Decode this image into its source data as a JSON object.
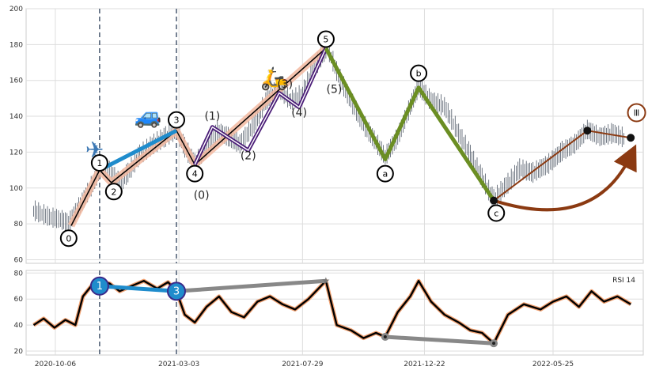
{
  "chart_data": [
    {
      "type": "line",
      "panel": "price",
      "title": "",
      "xlabel": "",
      "ylabel": "",
      "x_ticks": [
        "2020-10-06",
        "2021-03-03",
        "2021-07-29",
        "2021-12-22",
        "2022-05-25"
      ],
      "x_range": [
        "2020-09-01",
        "2022-09-10"
      ],
      "y_ticks": [
        60,
        80,
        100,
        120,
        140,
        160,
        180,
        200
      ],
      "ylim": [
        58,
        200
      ],
      "grid": true,
      "series": [
        {
          "style": "ohlc-bars",
          "color": "#2e3a4a",
          "points": [
            [
              "2020-09-10",
              87
            ],
            [
              "2020-09-20",
              85
            ],
            [
              "2020-10-01",
              83
            ],
            [
              "2020-10-12",
              82
            ],
            [
              "2020-10-22",
              80
            ],
            [
              "2020-11-05",
              90
            ],
            [
              "2020-11-20",
              102
            ],
            [
              "2020-12-01",
              112
            ],
            [
              "2020-12-12",
              108
            ],
            [
              "2020-12-22",
              102
            ],
            [
              "2021-01-01",
              108
            ],
            [
              "2021-01-15",
              118
            ],
            [
              "2021-02-01",
              124
            ],
            [
              "2021-02-15",
              128
            ],
            [
              "2021-02-28",
              132
            ],
            [
              "2021-03-10",
              122
            ],
            [
              "2021-03-22",
              113
            ],
            [
              "2021-04-05",
              122
            ],
            [
              "2021-04-18",
              131
            ],
            [
              "2021-05-01",
              128
            ],
            [
              "2021-05-15",
              124
            ],
            [
              "2021-06-01",
              135
            ],
            [
              "2021-06-15",
              148
            ],
            [
              "2021-07-01",
              155
            ],
            [
              "2021-07-15",
              148
            ],
            [
              "2021-07-29",
              152
            ],
            [
              "2021-08-10",
              165
            ],
            [
              "2021-08-28",
              178
            ],
            [
              "2021-09-10",
              162
            ],
            [
              "2021-09-25",
              148
            ],
            [
              "2021-10-10",
              135
            ],
            [
              "2021-10-25",
              125
            ],
            [
              "2021-11-05",
              117
            ],
            [
              "2021-11-20",
              128
            ],
            [
              "2021-12-05",
              145
            ],
            [
              "2021-12-15",
              156
            ],
            [
              "2021-12-30",
              148
            ],
            [
              "2022-01-15",
              145
            ],
            [
              "2022-02-01",
              130
            ],
            [
              "2022-02-15",
              118
            ],
            [
              "2022-03-01",
              105
            ],
            [
              "2022-03-15",
              93
            ],
            [
              "2022-04-01",
              102
            ],
            [
              "2022-04-15",
              110
            ],
            [
              "2022-05-01",
              108
            ],
            [
              "2022-05-20",
              113
            ],
            [
              "2022-06-05",
              120
            ],
            [
              "2022-06-20",
              124
            ],
            [
              "2022-07-05",
              132
            ],
            [
              "2022-07-20",
              128
            ],
            [
              "2022-08-05",
              130
            ],
            [
              "2022-08-20",
              127
            ]
          ]
        },
        {
          "name": "impulse",
          "style": "wave",
          "color": "#000000",
          "highlight": "#f2b8a0",
          "points": [
            [
              "2020-10-25",
              79
            ],
            [
              "2020-11-28",
              110
            ],
            [
              "2020-12-12",
              103
            ],
            [
              "2021-02-28",
              132
            ],
            [
              "2021-03-22",
              113
            ],
            [
              "2021-08-26",
              178
            ]
          ]
        },
        {
          "name": "sub-wave",
          "style": "wave",
          "color": "#4b1e78",
          "points": [
            [
              "2021-03-22",
              113
            ],
            [
              "2021-04-12",
              134
            ],
            [
              "2021-05-25",
              121
            ],
            [
              "2021-07-01",
              153
            ],
            [
              "2021-07-25",
              145
            ],
            [
              "2021-08-26",
              178
            ]
          ]
        },
        {
          "name": "blue-link",
          "style": "thick-line",
          "color": "#1f8ccc",
          "points": [
            [
              "2020-11-28",
              110
            ],
            [
              "2021-02-28",
              132
            ]
          ]
        },
        {
          "name": "correction",
          "style": "thick-line",
          "color": "#6b8e23",
          "points": [
            [
              "2021-08-26",
              178
            ],
            [
              "2021-11-05",
              116
            ],
            [
              "2021-12-15",
              156
            ],
            [
              "2022-03-15",
              93
            ]
          ]
        },
        {
          "name": "brown-line",
          "style": "line",
          "color": "#8b3a12",
          "points": [
            [
              "2022-03-15",
              93
            ],
            [
              "2022-07-05",
              132
            ],
            [
              "2022-08-26",
              128
            ]
          ]
        }
      ],
      "annotations": [
        {
          "text": "0",
          "x": "2020-10-22",
          "y": 72,
          "style": "circle"
        },
        {
          "text": "1",
          "x": "2020-11-28",
          "y": 114,
          "style": "circle"
        },
        {
          "text": "2",
          "x": "2020-12-15",
          "y": 98,
          "style": "circle"
        },
        {
          "text": "3",
          "x": "2021-02-28",
          "y": 138,
          "style": "circle"
        },
        {
          "text": "4",
          "x": "2021-03-22",
          "y": 108,
          "style": "circle"
        },
        {
          "text": "5",
          "x": "2021-08-26",
          "y": 183,
          "style": "circle"
        },
        {
          "text": "a",
          "x": "2021-11-05",
          "y": 108,
          "style": "circle"
        },
        {
          "text": "b",
          "x": "2021-12-15",
          "y": 164,
          "style": "circle"
        },
        {
          "text": "c",
          "x": "2022-03-18",
          "y": 86,
          "style": "circle"
        },
        {
          "text": "(1)",
          "x": "2021-04-12",
          "y": 138,
          "style": "text"
        },
        {
          "text": "(2)",
          "x": "2021-05-25",
          "y": 116,
          "style": "text"
        },
        {
          "text": "(3)",
          "x": "2021-07-08",
          "y": 156,
          "style": "text"
        },
        {
          "text": "(4)",
          "x": "2021-07-25",
          "y": 140,
          "style": "text"
        },
        {
          "text": "(5)",
          "x": "2021-09-05",
          "y": 153,
          "style": "text"
        },
        {
          "text": "(0)",
          "x": "2021-03-30",
          "y": 94,
          "style": "text"
        },
        {
          "text": "Ⅲ",
          "x": "2022-09-02",
          "y": 142,
          "style": "circle-brown"
        }
      ],
      "vlines": [
        "2020-11-28",
        "2021-02-28"
      ],
      "icons": [
        {
          "name": "airplane-icon",
          "glyph": "✈",
          "color": "#3c78b4",
          "x": "2020-11-22",
          "y": 117
        },
        {
          "name": "car-icon",
          "glyph": "🚙",
          "color": "#2a7fd4",
          "x": "2021-01-25",
          "y": 136
        },
        {
          "name": "scooter-icon",
          "glyph": "🛵",
          "color": "#d9952a",
          "x": "2021-06-25",
          "y": 157
        }
      ]
    },
    {
      "type": "line",
      "panel": "rsi",
      "title": "",
      "legend_text": "RSI 14",
      "legend_placement": "top-right",
      "y_ticks": [
        20,
        40,
        60,
        80
      ],
      "ylim": [
        17,
        82
      ],
      "x_ticks": [
        "2020-10-06",
        "2021-03-03",
        "2021-07-29",
        "2021-12-22",
        "2022-05-25"
      ],
      "grid": true,
      "series": [
        {
          "style": "line",
          "color": "#000000",
          "outline": "#f0a070",
          "points": [
            [
              "2020-09-10",
              40
            ],
            [
              "2020-09-22",
              45
            ],
            [
              "2020-10-05",
              38
            ],
            [
              "2020-10-18",
              44
            ],
            [
              "2020-10-30",
              40
            ],
            [
              "2020-11-08",
              62
            ],
            [
              "2020-11-18",
              70
            ],
            [
              "2020-11-28",
              74
            ],
            [
              "2020-12-10",
              72
            ],
            [
              "2020-12-22",
              66
            ],
            [
              "2021-01-05",
              70
            ],
            [
              "2021-01-20",
              74
            ],
            [
              "2021-02-05",
              68
            ],
            [
              "2021-02-18",
              73
            ],
            [
              "2021-02-28",
              66
            ],
            [
              "2021-03-10",
              48
            ],
            [
              "2021-03-22",
              42
            ],
            [
              "2021-04-05",
              54
            ],
            [
              "2021-04-20",
              62
            ],
            [
              "2021-05-05",
              50
            ],
            [
              "2021-05-20",
              46
            ],
            [
              "2021-06-05",
              58
            ],
            [
              "2021-06-20",
              62
            ],
            [
              "2021-07-05",
              56
            ],
            [
              "2021-07-20",
              52
            ],
            [
              "2021-08-05",
              60
            ],
            [
              "2021-08-26",
              74
            ],
            [
              "2021-09-08",
              40
            ],
            [
              "2021-09-25",
              36
            ],
            [
              "2021-10-10",
              30
            ],
            [
              "2021-10-25",
              34
            ],
            [
              "2021-11-05",
              31
            ],
            [
              "2021-11-20",
              50
            ],
            [
              "2021-12-05",
              62
            ],
            [
              "2021-12-15",
              74
            ],
            [
              "2021-12-30",
              58
            ],
            [
              "2022-01-15",
              48
            ],
            [
              "2022-02-01",
              42
            ],
            [
              "2022-02-15",
              36
            ],
            [
              "2022-03-01",
              34
            ],
            [
              "2022-03-15",
              26
            ],
            [
              "2022-04-01",
              48
            ],
            [
              "2022-04-20",
              56
            ],
            [
              "2022-05-10",
              52
            ],
            [
              "2022-05-25",
              58
            ],
            [
              "2022-06-10",
              62
            ],
            [
              "2022-06-25",
              54
            ],
            [
              "2022-07-10",
              66
            ],
            [
              "2022-07-25",
              58
            ],
            [
              "2022-08-10",
              62
            ],
            [
              "2022-08-26",
              56
            ]
          ]
        },
        {
          "name": "rsi-blue",
          "style": "thick-line",
          "color": "#1f8ccc",
          "points": [
            [
              "2020-11-28",
              70
            ],
            [
              "2021-02-28",
              66
            ]
          ]
        },
        {
          "name": "rsi-grey-high",
          "style": "thick-line",
          "color": "#888888",
          "points": [
            [
              "2021-02-28",
              66
            ],
            [
              "2021-08-26",
              74
            ]
          ]
        },
        {
          "name": "rsi-grey-low",
          "style": "thick-line",
          "color": "#888888",
          "points": [
            [
              "2021-11-05",
              31
            ],
            [
              "2022-03-15",
              26
            ]
          ]
        }
      ],
      "annotations": [
        {
          "text": "1",
          "x": "2020-11-28",
          "y": 70,
          "style": "circle-blue"
        },
        {
          "text": "3",
          "x": "2021-02-28",
          "y": 66,
          "style": "circle-blue"
        }
      ],
      "vlines": [
        "2020-11-28",
        "2021-02-28"
      ]
    }
  ]
}
